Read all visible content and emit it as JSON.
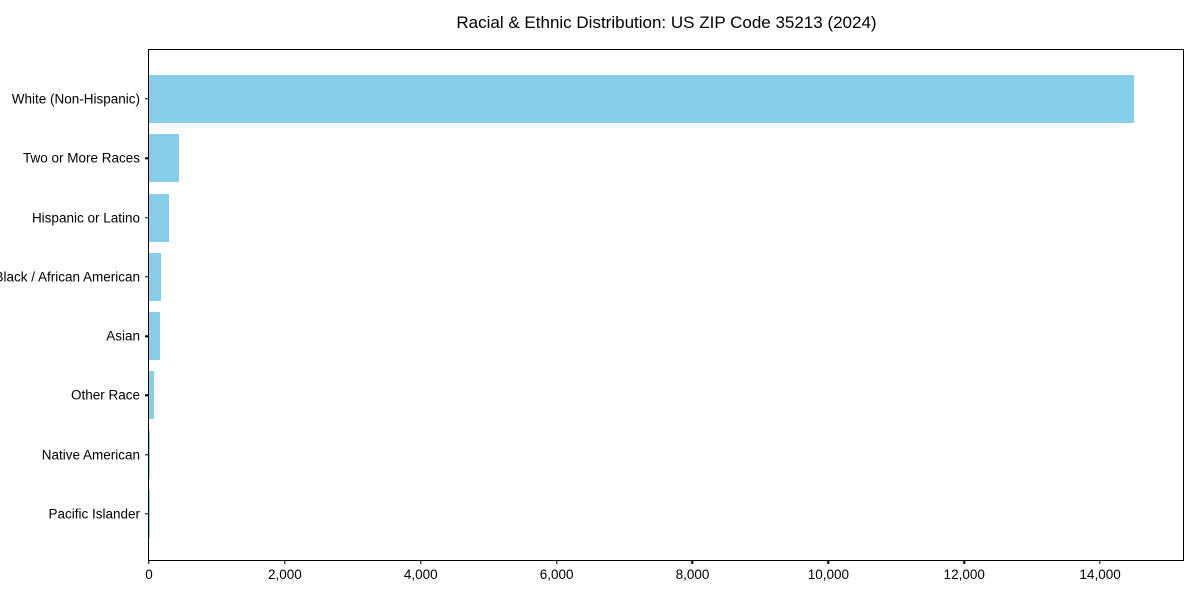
{
  "chart_data": {
    "type": "bar",
    "orientation": "horizontal",
    "title": "Racial & Ethnic Distribution: US ZIP Code 35213 (2024)",
    "categories": [
      "White (Non-Hispanic)",
      "Two or More Races",
      "Hispanic or Latino",
      "Black / African American",
      "Asian",
      "Other Race",
      "Native American",
      "Pacific Islander"
    ],
    "values": [
      14500,
      440,
      290,
      180,
      160,
      80,
      10,
      5
    ],
    "xlabel": "",
    "ylabel": "",
    "xlim": [
      0,
      15250
    ],
    "xticks": [
      0,
      2000,
      4000,
      6000,
      8000,
      10000,
      12000,
      14000
    ],
    "xtick_labels": [
      "0",
      "2,000",
      "4,000",
      "6,000",
      "8,000",
      "10,000",
      "12,000",
      "14,000"
    ],
    "bar_color": "#87CEEB",
    "frame_color": "#000000",
    "grid": false,
    "legend": null
  }
}
